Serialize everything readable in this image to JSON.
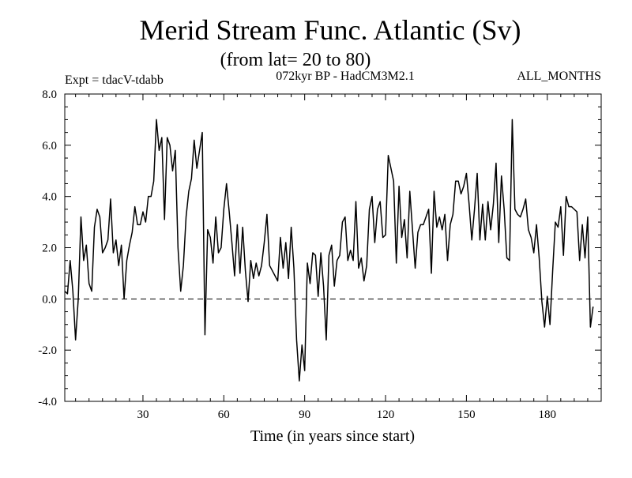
{
  "header": {
    "title": "Merid Stream Func. Atlantic (Sv)",
    "subtitle": "(from lat= 20 to 80)",
    "expt": "Expt = tdacV-tdabb",
    "model": "072kyr BP - HadCM3M2.1",
    "period": "ALL_MONTHS"
  },
  "chart_data": {
    "type": "line",
    "title": "Merid Stream Func. Atlantic (Sv)",
    "xlabel": "Time (in years since start)",
    "ylabel": "",
    "xlim": [
      1,
      200
    ],
    "ylim": [
      -4.0,
      8.0
    ],
    "x_ticks": [
      30,
      60,
      90,
      120,
      150,
      180
    ],
    "x_tick_labels": [
      "30",
      "60",
      "90",
      "120",
      "150",
      "180"
    ],
    "y_ticks": [
      -4.0,
      -2.0,
      0.0,
      2.0,
      4.0,
      6.0,
      8.0
    ],
    "y_tick_labels": [
      "-4.0",
      "-2.0",
      "0.0",
      "2.0",
      "4.0",
      "6.0",
      "8.0"
    ],
    "reference_line": 0.0,
    "series": [
      {
        "name": "Merid Stream Func. Atlantic",
        "x_start": 1,
        "x_step": 1,
        "values": [
          0.3,
          0.2,
          1.5,
          0.3,
          -1.6,
          0.0,
          3.2,
          1.5,
          2.1,
          0.6,
          0.3,
          2.8,
          3.5,
          3.2,
          1.8,
          2.0,
          2.3,
          3.9,
          1.8,
          2.3,
          1.3,
          2.1,
          0.0,
          1.5,
          2.1,
          2.6,
          3.6,
          2.9,
          2.9,
          3.4,
          3.0,
          4.0,
          4.0,
          4.6,
          7.0,
          5.8,
          6.3,
          3.1,
          6.3,
          6.0,
          5.0,
          5.8,
          2.0,
          0.3,
          1.3,
          3.2,
          4.2,
          4.7,
          6.2,
          5.1,
          5.8,
          6.5,
          -1.4,
          2.7,
          2.4,
          1.4,
          3.2,
          1.8,
          2.0,
          3.5,
          4.5,
          3.4,
          2.2,
          0.9,
          2.9,
          1.0,
          2.8,
          1.1,
          -0.1,
          1.5,
          0.8,
          1.4,
          0.9,
          1.3,
          2.2,
          3.3,
          1.3,
          1.1,
          0.9,
          0.7,
          2.4,
          1.2,
          2.2,
          0.8,
          2.8,
          1.2,
          -1.6,
          -3.2,
          -1.8,
          -2.8,
          1.4,
          0.6,
          1.8,
          1.7,
          0.1,
          1.8,
          0.5,
          -1.6,
          1.7,
          2.1,
          0.5,
          1.5,
          1.7,
          3.0,
          3.2,
          1.5,
          1.9,
          1.5,
          3.8,
          1.2,
          1.6,
          0.7,
          1.3,
          3.5,
          4.0,
          2.2,
          3.5,
          3.8,
          2.4,
          2.5,
          5.6,
          5.1,
          4.6,
          1.4,
          4.4,
          2.4,
          3.1,
          1.6,
          4.2,
          2.7,
          1.2,
          2.6,
          2.9,
          2.9,
          3.2,
          3.5,
          1.0,
          4.2,
          2.8,
          3.2,
          2.7,
          3.3,
          1.5,
          2.9,
          3.3,
          4.6,
          4.6,
          4.1,
          4.4,
          4.9,
          3.7,
          2.3,
          3.5,
          4.9,
          2.3,
          3.7,
          2.3,
          3.8,
          2.7,
          3.7,
          5.3,
          2.2,
          4.8,
          3.5,
          1.6,
          1.5,
          7.0,
          3.5,
          3.3,
          3.2,
          3.5,
          3.9,
          2.7,
          2.4,
          1.8,
          2.9,
          1.6,
          -0.1,
          -1.1,
          0.1,
          -1.0,
          1.1,
          3.0,
          2.8,
          3.6,
          1.7,
          4.0,
          3.6,
          3.6,
          3.5,
          3.4,
          1.5,
          2.9,
          1.6,
          3.2,
          -1.1,
          -0.3
        ]
      }
    ]
  }
}
